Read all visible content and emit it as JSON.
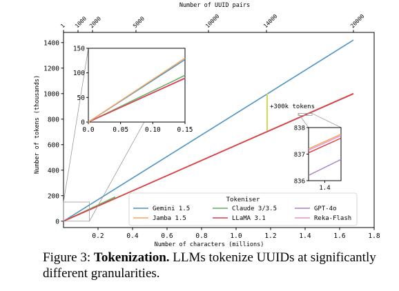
{
  "caption": {
    "figure_label": "Figure 3:",
    "bold": "Tokenization.",
    "text": "LLMs tokenize UUIDs at significantly different granularities."
  },
  "chart_data": [
    {
      "type": "line",
      "xlabel": "Number of characters (millions)",
      "ylabel": "Number of tokens (thousands)",
      "top_xlabel": "Number of UUID pairs",
      "xlim": [
        0,
        1.8
      ],
      "ylim": [
        -50,
        1480
      ],
      "x_ticks": [
        0.2,
        0.4,
        0.6,
        0.8,
        1.0,
        1.2,
        1.4,
        1.6,
        1.8
      ],
      "x_tick_labels": [
        "0.2",
        "0.4",
        "0.6",
        "0.8",
        "1.0",
        "1.2",
        "1.4",
        "1.6",
        "1.8"
      ],
      "y_ticks": [
        0,
        200,
        400,
        600,
        800,
        1000,
        1200,
        1400
      ],
      "y_tick_labels": [
        "0",
        "200",
        "400",
        "600",
        "800",
        "1000",
        "1200",
        "1400"
      ],
      "top_ticks": [
        1,
        1000,
        2000,
        5000,
        10000,
        14000,
        20000
      ],
      "top_tick_labels": [
        "1",
        "1000",
        "2000",
        "5000",
        "10000",
        "14000",
        "20000"
      ],
      "chars_per_uuid_pair": 84,
      "grid": false,
      "legend": {
        "title": "Tokeniser",
        "placement": "lower-right",
        "columns": 3
      },
      "series": [
        {
          "name": "Gemini 1.5",
          "color": "#4c92c3",
          "x": [
            0,
            1.68
          ],
          "y": [
            0,
            1420
          ]
        },
        {
          "name": "Jamba 1.5",
          "color": "#f5a65b",
          "x": [
            0,
            1.68
          ],
          "y": [
            0,
            1002
          ]
        },
        {
          "name": "Claude 3/3.5",
          "color": "#5aaf5a",
          "x": [
            0,
            0.3
          ],
          "y": [
            0,
            190
          ]
        },
        {
          "name": "LLaMA 3.1",
          "color": "#d93c43",
          "x": [
            0,
            1.68
          ],
          "y": [
            0,
            1000
          ]
        },
        {
          "name": "GPT-4o",
          "color": "#a87fc4",
          "x": [
            0,
            1.68
          ],
          "y": [
            0,
            998
          ]
        },
        {
          "name": "Reka-Flash",
          "color": "#ee8fcb",
          "x": [
            0,
            1.68
          ],
          "y": [
            0,
            1001
          ]
        }
      ],
      "annotation": {
        "text": "+300k tokens",
        "x": 1.18,
        "y_from": 708,
        "y_to": 1000,
        "color": "#d6d36a"
      }
    },
    {
      "type": "line",
      "role": "inset-zoom-origin",
      "xlim": [
        0,
        0.15
      ],
      "ylim": [
        0,
        150
      ],
      "x_ticks": [
        0.0,
        0.05,
        0.1,
        0.15
      ],
      "x_tick_labels": [
        "0.0",
        "0.05",
        "0.10",
        "0.15"
      ],
      "y_ticks": [
        0,
        50,
        100,
        150
      ],
      "y_tick_labels": [
        "0",
        "50",
        "100",
        "150"
      ],
      "series": [
        {
          "name": "Gemini 1.5",
          "color": "#4c92c3",
          "x": [
            0,
            0.15
          ],
          "y": [
            0,
            127
          ]
        },
        {
          "name": "Jamba 1.5",
          "color": "#f5a65b",
          "x": [
            0,
            0.15
          ],
          "y": [
            0,
            130
          ]
        },
        {
          "name": "Claude 3/3.5",
          "color": "#5aaf5a",
          "x": [
            0,
            0.15
          ],
          "y": [
            0,
            95
          ]
        },
        {
          "name": "LLaMA 3.1",
          "color": "#d93c43",
          "x": [
            0,
            0.15
          ],
          "y": [
            0,
            89
          ]
        },
        {
          "name": "GPT-4o",
          "color": "#a87fc4",
          "x": [
            0,
            0.15
          ],
          "y": [
            0,
            89
          ]
        },
        {
          "name": "Reka-Flash",
          "color": "#ee8fcb",
          "x": [
            0,
            0.15
          ],
          "y": [
            0,
            90
          ]
        }
      ]
    },
    {
      "type": "line",
      "role": "inset-zoom-end",
      "xlim": [
        1.36,
        1.44
      ],
      "ylim": [
        836,
        838
      ],
      "x_ticks": [
        1.4
      ],
      "x_tick_labels": [
        "1.4"
      ],
      "y_ticks": [
        836,
        837,
        838
      ],
      "y_tick_labels": [
        "836",
        "837",
        "838"
      ],
      "series": [
        {
          "name": "Jamba 1.5",
          "color": "#f5a65b",
          "x": [
            1.36,
            1.44
          ],
          "y": [
            837.2,
            837.75
          ]
        },
        {
          "name": "Reka-Flash",
          "color": "#ee8fcb",
          "x": [
            1.36,
            1.44
          ],
          "y": [
            837.15,
            837.7
          ]
        },
        {
          "name": "LLaMA 3.1",
          "color": "#d93c43",
          "x": [
            1.36,
            1.44
          ],
          "y": [
            837.05,
            837.6
          ]
        },
        {
          "name": "GPT-4o",
          "color": "#a87fc4",
          "x": [
            1.36,
            1.44
          ],
          "y": [
            836.2,
            836.8
          ]
        }
      ]
    }
  ]
}
